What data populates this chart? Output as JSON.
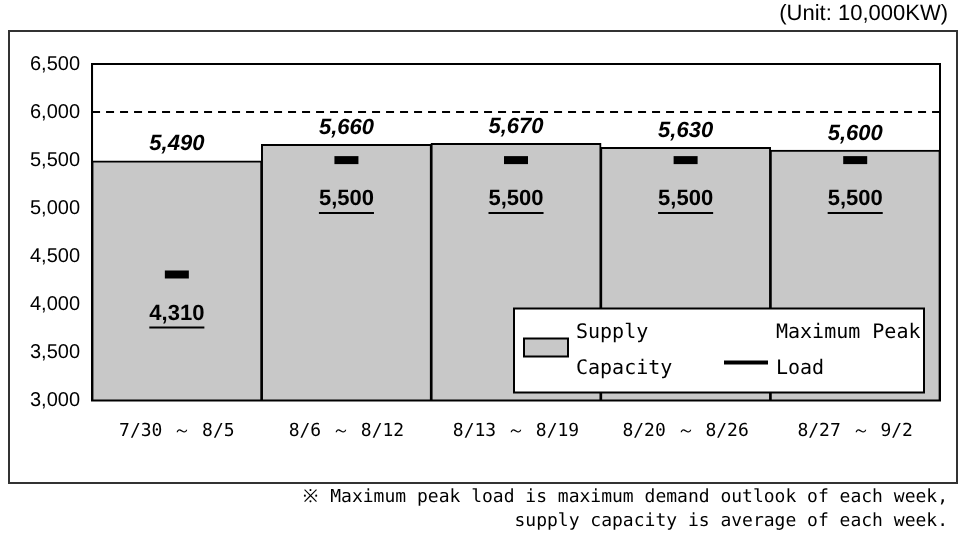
{
  "chart_data": {
    "type": "bar",
    "subtitle": "(Unit: 10,000KW)",
    "categories": [
      "7/30 ～ 8/5",
      "8/6 ～ 8/12",
      "8/13 ～ 8/19",
      "8/20 ～ 8/26",
      "8/27 ～ 9/2"
    ],
    "series": [
      {
        "name": "Supply Capacity",
        "color": "#c8c8c8",
        "values": [
          5490,
          5660,
          5670,
          5630,
          5600
        ],
        "value_labels": [
          "5,490",
          "5,660",
          "5,670",
          "5,630",
          "5,600"
        ]
      },
      {
        "name": "Maximum Peak Load",
        "type": "scatter",
        "color": "#000000",
        "values": [
          4310,
          5500,
          5500,
          5500,
          5500
        ],
        "value_labels": [
          "4,310",
          "5,500",
          "5,500",
          "5,500",
          "5,500"
        ]
      }
    ],
    "ylim": [
      3000,
      6500
    ],
    "yticks": [
      {
        "value": 3000,
        "label": "3,000"
      },
      {
        "value": 3500,
        "label": "3,500"
      },
      {
        "value": 4000,
        "label": "4,000"
      },
      {
        "value": 4500,
        "label": "4,500"
      },
      {
        "value": 5000,
        "label": "5,000"
      },
      {
        "value": 5500,
        "label": "5,500"
      },
      {
        "value": 6000,
        "label": "6,000"
      },
      {
        "value": 6500,
        "label": "6,500"
      }
    ],
    "ref_lines": [
      {
        "axis": "y",
        "value": 6000,
        "color": "#000000",
        "line_style": "dashed"
      }
    ],
    "legend": "bottom right",
    "annotations": [
      "※ Maximum peak load is maximum demand outlook of each week,\nsupply capacity is average of each week."
    ]
  }
}
